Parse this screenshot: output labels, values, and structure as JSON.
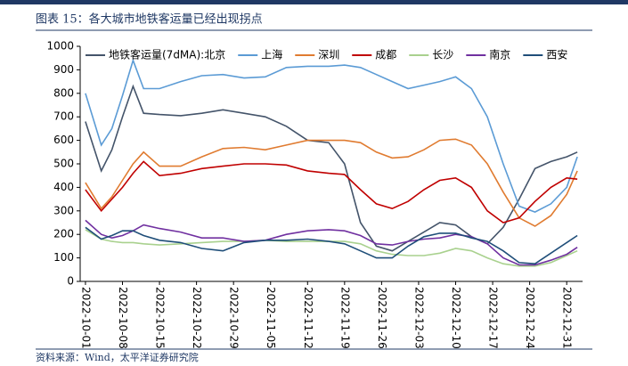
{
  "chart_data": {
    "type": "line",
    "title": "图表 15：各大城市地铁客运量已经出现拐点",
    "source": "资料来源：Wind，太平洋证券研究院",
    "x": [
      "2022-10-01",
      "2022-10-04",
      "2022-10-06",
      "2022-10-08",
      "2022-10-10",
      "2022-10-12",
      "2022-10-15",
      "2022-10-19",
      "2022-10-23",
      "2022-10-27",
      "2022-10-31",
      "2022-11-04",
      "2022-11-08",
      "2022-11-12",
      "2022-11-16",
      "2022-11-19",
      "2022-11-22",
      "2022-11-25",
      "2022-11-28",
      "2022-12-01",
      "2022-12-04",
      "2022-12-07",
      "2022-12-10",
      "2022-12-13",
      "2022-12-16",
      "2022-12-19",
      "2022-12-22",
      "2022-12-25",
      "2022-12-28",
      "2022-12-31",
      "2023-01-02"
    ],
    "xlim": [
      "2022-09-30",
      "2023-01-03"
    ],
    "xticks": [
      "2022-10-01",
      "2022-10-08",
      "2022-10-15",
      "2022-10-22",
      "2022-10-29",
      "2022-11-05",
      "2022-11-12",
      "2022-11-19",
      "2022-11-26",
      "2022-12-03",
      "2022-12-10",
      "2022-12-17",
      "2022-12-24",
      "2022-12-31"
    ],
    "ylim": [
      0,
      1000
    ],
    "yticks": [
      0,
      100,
      200,
      300,
      400,
      500,
      600,
      700,
      800,
      900,
      1000
    ],
    "legend": "top",
    "grid": false,
    "series": [
      {
        "name": "地铁客运量(7dMA):北京",
        "color": "#44546a",
        "values": [
          680,
          470,
          560,
          700,
          830,
          715,
          710,
          705,
          715,
          730,
          715,
          700,
          660,
          600,
          590,
          500,
          250,
          150,
          130,
          170,
          210,
          250,
          240,
          190,
          160,
          230,
          350,
          480,
          510,
          530,
          550
        ]
      },
      {
        "name": "上海",
        "color": "#5b9bd5",
        "values": [
          800,
          580,
          650,
          790,
          940,
          820,
          820,
          850,
          875,
          880,
          865,
          870,
          910,
          915,
          915,
          920,
          910,
          880,
          850,
          820,
          835,
          850,
          870,
          820,
          700,
          500,
          320,
          295,
          330,
          400,
          530
        ]
      },
      {
        "name": "深圳",
        "color": "#e07b30",
        "values": [
          420,
          310,
          360,
          430,
          500,
          550,
          490,
          490,
          530,
          565,
          570,
          560,
          580,
          600,
          600,
          600,
          590,
          550,
          525,
          530,
          560,
          600,
          605,
          580,
          500,
          380,
          270,
          235,
          280,
          370,
          470
        ]
      },
      {
        "name": "成都",
        "color": "#c00000",
        "values": [
          390,
          300,
          350,
          400,
          460,
          510,
          450,
          460,
          480,
          490,
          500,
          500,
          495,
          470,
          460,
          455,
          390,
          330,
          310,
          340,
          390,
          430,
          440,
          400,
          300,
          250,
          270,
          340,
          400,
          440,
          435
        ]
      },
      {
        "name": "长沙",
        "color": "#a9d18e",
        "values": [
          220,
          180,
          170,
          165,
          165,
          160,
          155,
          160,
          165,
          170,
          170,
          175,
          170,
          170,
          170,
          170,
          160,
          130,
          115,
          110,
          110,
          120,
          140,
          130,
          100,
          75,
          65,
          65,
          80,
          110,
          130
        ]
      },
      {
        "name": "南京",
        "color": "#7030a0",
        "values": [
          260,
          200,
          185,
          195,
          215,
          240,
          225,
          210,
          185,
          185,
          170,
          175,
          200,
          215,
          220,
          215,
          195,
          160,
          155,
          170,
          180,
          185,
          200,
          190,
          160,
          100,
          70,
          70,
          90,
          115,
          145
        ]
      },
      {
        "name": "西安",
        "color": "#1f4e79",
        "values": [
          230,
          180,
          195,
          215,
          215,
          195,
          175,
          165,
          140,
          130,
          165,
          175,
          175,
          180,
          170,
          160,
          130,
          100,
          100,
          150,
          190,
          205,
          205,
          185,
          170,
          130,
          80,
          75,
          120,
          165,
          195
        ]
      }
    ]
  }
}
